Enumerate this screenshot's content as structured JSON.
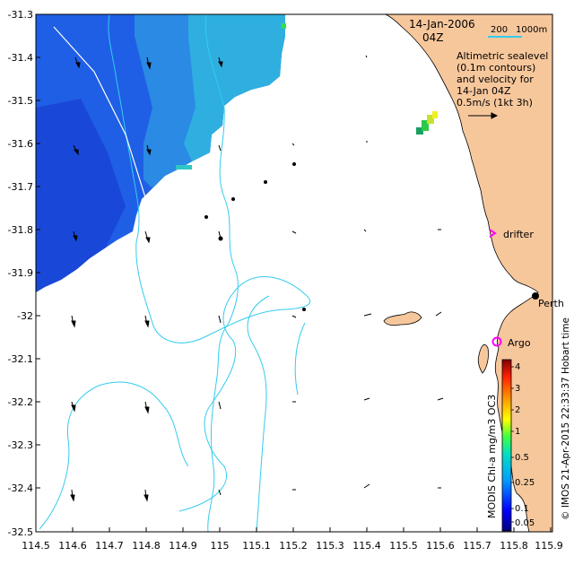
{
  "map": {
    "date": "14-Jan-2006",
    "hour": "04Z",
    "scale_label_a": "200",
    "scale_label_b": "1000m",
    "legend_lines": [
      "Altimetric sealevel",
      "(0.1m contours)",
      "and velocity for",
      "14-Jan 04Z",
      "0.5m/s (1kt 3h)"
    ],
    "places": {
      "perth": "Perth",
      "drifter": "drifter",
      "argo": "Argo"
    },
    "colorbar": {
      "title": "MODIS Chl-a mg/m3 OC3",
      "ticks": [
        "4",
        "3",
        "2",
        "1",
        "0.5",
        "0.25",
        "0.1",
        "0.05"
      ]
    },
    "credit": "© IMOS 21-Apr-2015 22:33:37 Hobart time",
    "colors": {
      "land": "#f7c79c",
      "ocean": "#ffffff",
      "bathymetry": "#33ccee",
      "chl_high": "#1f55e0",
      "chl_mid": "#2b9fe0",
      "chl_low": "#27c4d6",
      "drifter_marker": "#ff00ff",
      "argo_marker": "#ff00ff"
    }
  },
  "chart_data": {
    "type": "map",
    "x_ticks": [
      "114.5",
      "114.6",
      "114.7",
      "114.8",
      "114.9",
      "115",
      "115.1",
      "115.2",
      "115.3",
      "115.4",
      "115.5",
      "115.6",
      "115.7",
      "115.8",
      "115.9"
    ],
    "y_ticks": [
      "-31.3",
      "-31.4",
      "-31.5",
      "-31.6",
      "-31.7",
      "-31.8",
      "-31.9",
      "-32",
      "-32.1",
      "-32.2",
      "-32.3",
      "-32.4",
      "-32.5"
    ],
    "xlim": [
      114.5,
      115.9
    ],
    "ylim": [
      -32.5,
      -31.3
    ],
    "markers": [
      {
        "name": "Perth",
        "lon": 115.86,
        "lat": -31.95
      },
      {
        "name": "drifter",
        "lon": 115.76,
        "lat": -31.81
      },
      {
        "name": "Argo",
        "lon": 115.75,
        "lat": -32.06
      }
    ]
  }
}
